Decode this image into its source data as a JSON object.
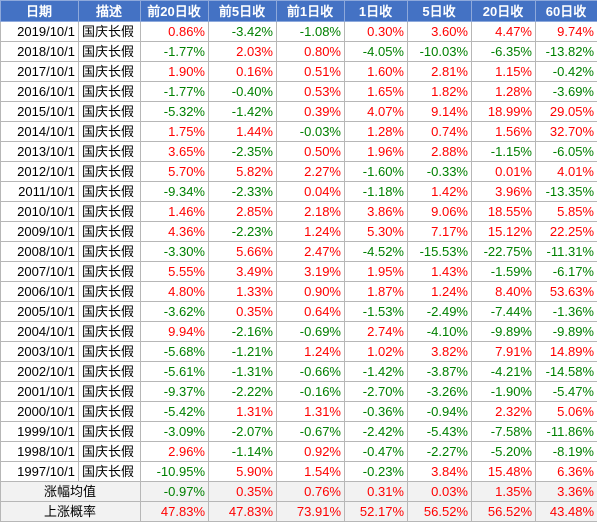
{
  "headers": [
    "日期",
    "描述",
    "前20日收",
    "前5日收",
    "前1日收",
    "1日收",
    "5日收",
    "20日收",
    "60日收"
  ],
  "rows": [
    {
      "date": "2019/10/1",
      "desc": "国庆长假",
      "vals": [
        "0.86%",
        "-3.42%",
        "-1.08%",
        "0.30%",
        "3.60%",
        "4.47%",
        "9.74%"
      ]
    },
    {
      "date": "2018/10/1",
      "desc": "国庆长假",
      "vals": [
        "-1.77%",
        "2.03%",
        "0.80%",
        "-4.05%",
        "-10.03%",
        "-6.35%",
        "-13.82%"
      ]
    },
    {
      "date": "2017/10/1",
      "desc": "国庆长假",
      "vals": [
        "1.90%",
        "0.16%",
        "0.51%",
        "1.60%",
        "2.81%",
        "1.15%",
        "-0.42%"
      ]
    },
    {
      "date": "2016/10/1",
      "desc": "国庆长假",
      "vals": [
        "-1.77%",
        "-0.40%",
        "0.53%",
        "1.65%",
        "1.82%",
        "1.28%",
        "-3.69%"
      ]
    },
    {
      "date": "2015/10/1",
      "desc": "国庆长假",
      "vals": [
        "-5.32%",
        "-1.42%",
        "0.39%",
        "4.07%",
        "9.14%",
        "18.99%",
        "29.05%"
      ]
    },
    {
      "date": "2014/10/1",
      "desc": "国庆长假",
      "vals": [
        "1.75%",
        "1.44%",
        "-0.03%",
        "1.28%",
        "0.74%",
        "1.56%",
        "32.70%"
      ]
    },
    {
      "date": "2013/10/1",
      "desc": "国庆长假",
      "vals": [
        "3.65%",
        "-2.35%",
        "0.50%",
        "1.96%",
        "2.88%",
        "-1.15%",
        "-6.05%"
      ]
    },
    {
      "date": "2012/10/1",
      "desc": "国庆长假",
      "vals": [
        "5.70%",
        "5.82%",
        "2.27%",
        "-1.60%",
        "-0.33%",
        "0.01%",
        "4.01%"
      ]
    },
    {
      "date": "2011/10/1",
      "desc": "国庆长假",
      "vals": [
        "-9.34%",
        "-2.33%",
        "0.04%",
        "-1.18%",
        "1.42%",
        "3.96%",
        "-13.35%"
      ]
    },
    {
      "date": "2010/10/1",
      "desc": "国庆长假",
      "vals": [
        "1.46%",
        "2.85%",
        "2.18%",
        "3.86%",
        "9.06%",
        "18.55%",
        "5.85%"
      ]
    },
    {
      "date": "2009/10/1",
      "desc": "国庆长假",
      "vals": [
        "4.36%",
        "-2.23%",
        "1.24%",
        "5.30%",
        "7.17%",
        "15.12%",
        "22.25%"
      ]
    },
    {
      "date": "2008/10/1",
      "desc": "国庆长假",
      "vals": [
        "-3.30%",
        "5.66%",
        "2.47%",
        "-4.52%",
        "-15.53%",
        "-22.75%",
        "-11.31%"
      ]
    },
    {
      "date": "2007/10/1",
      "desc": "国庆长假",
      "vals": [
        "5.55%",
        "3.49%",
        "3.19%",
        "1.95%",
        "1.43%",
        "-1.59%",
        "-6.17%"
      ]
    },
    {
      "date": "2006/10/1",
      "desc": "国庆长假",
      "vals": [
        "4.80%",
        "1.33%",
        "0.90%",
        "1.87%",
        "1.24%",
        "8.40%",
        "53.63%"
      ]
    },
    {
      "date": "2005/10/1",
      "desc": "国庆长假",
      "vals": [
        "-3.62%",
        "0.35%",
        "0.64%",
        "-1.53%",
        "-2.49%",
        "-7.44%",
        "-1.36%"
      ]
    },
    {
      "date": "2004/10/1",
      "desc": "国庆长假",
      "vals": [
        "9.94%",
        "-2.16%",
        "-0.69%",
        "2.74%",
        "-4.10%",
        "-9.89%",
        "-9.89%"
      ]
    },
    {
      "date": "2003/10/1",
      "desc": "国庆长假",
      "vals": [
        "-5.68%",
        "-1.21%",
        "1.24%",
        "1.02%",
        "3.82%",
        "7.91%",
        "14.89%"
      ]
    },
    {
      "date": "2002/10/1",
      "desc": "国庆长假",
      "vals": [
        "-5.61%",
        "-1.31%",
        "-0.66%",
        "-1.42%",
        "-3.87%",
        "-4.21%",
        "-14.58%"
      ]
    },
    {
      "date": "2001/10/1",
      "desc": "国庆长假",
      "vals": [
        "-9.37%",
        "-2.22%",
        "-0.16%",
        "-2.70%",
        "-3.26%",
        "-1.90%",
        "-5.47%"
      ]
    },
    {
      "date": "2000/10/1",
      "desc": "国庆长假",
      "vals": [
        "-5.42%",
        "1.31%",
        "1.31%",
        "-0.36%",
        "-0.94%",
        "2.32%",
        "5.06%"
      ]
    },
    {
      "date": "1999/10/1",
      "desc": "国庆长假",
      "vals": [
        "-3.09%",
        "-2.07%",
        "-0.67%",
        "-2.42%",
        "-5.43%",
        "-7.58%",
        "-11.86%"
      ]
    },
    {
      "date": "1998/10/1",
      "desc": "国庆长假",
      "vals": [
        "2.96%",
        "-1.14%",
        "0.92%",
        "-0.47%",
        "-2.27%",
        "-5.20%",
        "-8.19%"
      ]
    },
    {
      "date": "1997/10/1",
      "desc": "国庆长假",
      "vals": [
        "-10.95%",
        "5.90%",
        "1.54%",
        "-0.23%",
        "3.84%",
        "15.48%",
        "6.36%"
      ]
    }
  ],
  "summary": [
    {
      "label": "涨幅均值",
      "vals": [
        "-0.97%",
        "0.35%",
        "0.76%",
        "0.31%",
        "0.03%",
        "1.35%",
        "3.36%"
      ]
    },
    {
      "label": "上涨概率",
      "vals": [
        "47.83%",
        "47.83%",
        "73.91%",
        "52.17%",
        "56.52%",
        "56.52%",
        "43.48%"
      ]
    }
  ],
  "colors": {
    "positive": "#ff0000",
    "negative": "#008000",
    "header_bg": "#4472c4"
  }
}
